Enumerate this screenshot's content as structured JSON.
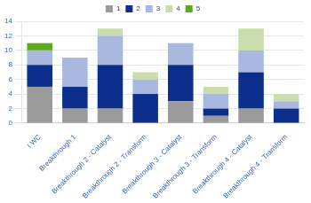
{
  "chart_data": {
    "type": "bar",
    "stacked": true,
    "grid": true,
    "legend": "top",
    "categories": [
      "I WC",
      "Breakthrough 1",
      "Breakthrough 2 - Catalyst",
      "Breakthrough 2 - Transform",
      "Breakthrough 3 - Catalyst",
      "Breakthrough 3 - Transform",
      "Breakthrough 4 - Catalyst",
      "Breakthrough 4 - Transform"
    ],
    "series": [
      {
        "name": "1",
        "color": "#9b9b9b",
        "values": [
          5,
          2,
          2,
          0,
          3,
          1,
          2,
          0
        ]
      },
      {
        "name": "2",
        "color": "#0b2f8a",
        "values": [
          3,
          3,
          6,
          4,
          5,
          1,
          5,
          2
        ]
      },
      {
        "name": "3",
        "color": "#a9b8df",
        "values": [
          2,
          4,
          4,
          2,
          3,
          2,
          3,
          1
        ]
      },
      {
        "name": "4",
        "color": "#c9deac",
        "values": [
          0,
          0,
          1,
          1,
          0,
          1,
          3,
          1
        ]
      },
      {
        "name": "5",
        "color": "#5fa81e",
        "values": [
          1,
          0,
          0,
          0,
          0,
          0,
          0,
          0
        ]
      }
    ],
    "ylim": [
      0,
      14
    ],
    "yticks": [
      0,
      2,
      4,
      6,
      8,
      10,
      12,
      14
    ]
  }
}
